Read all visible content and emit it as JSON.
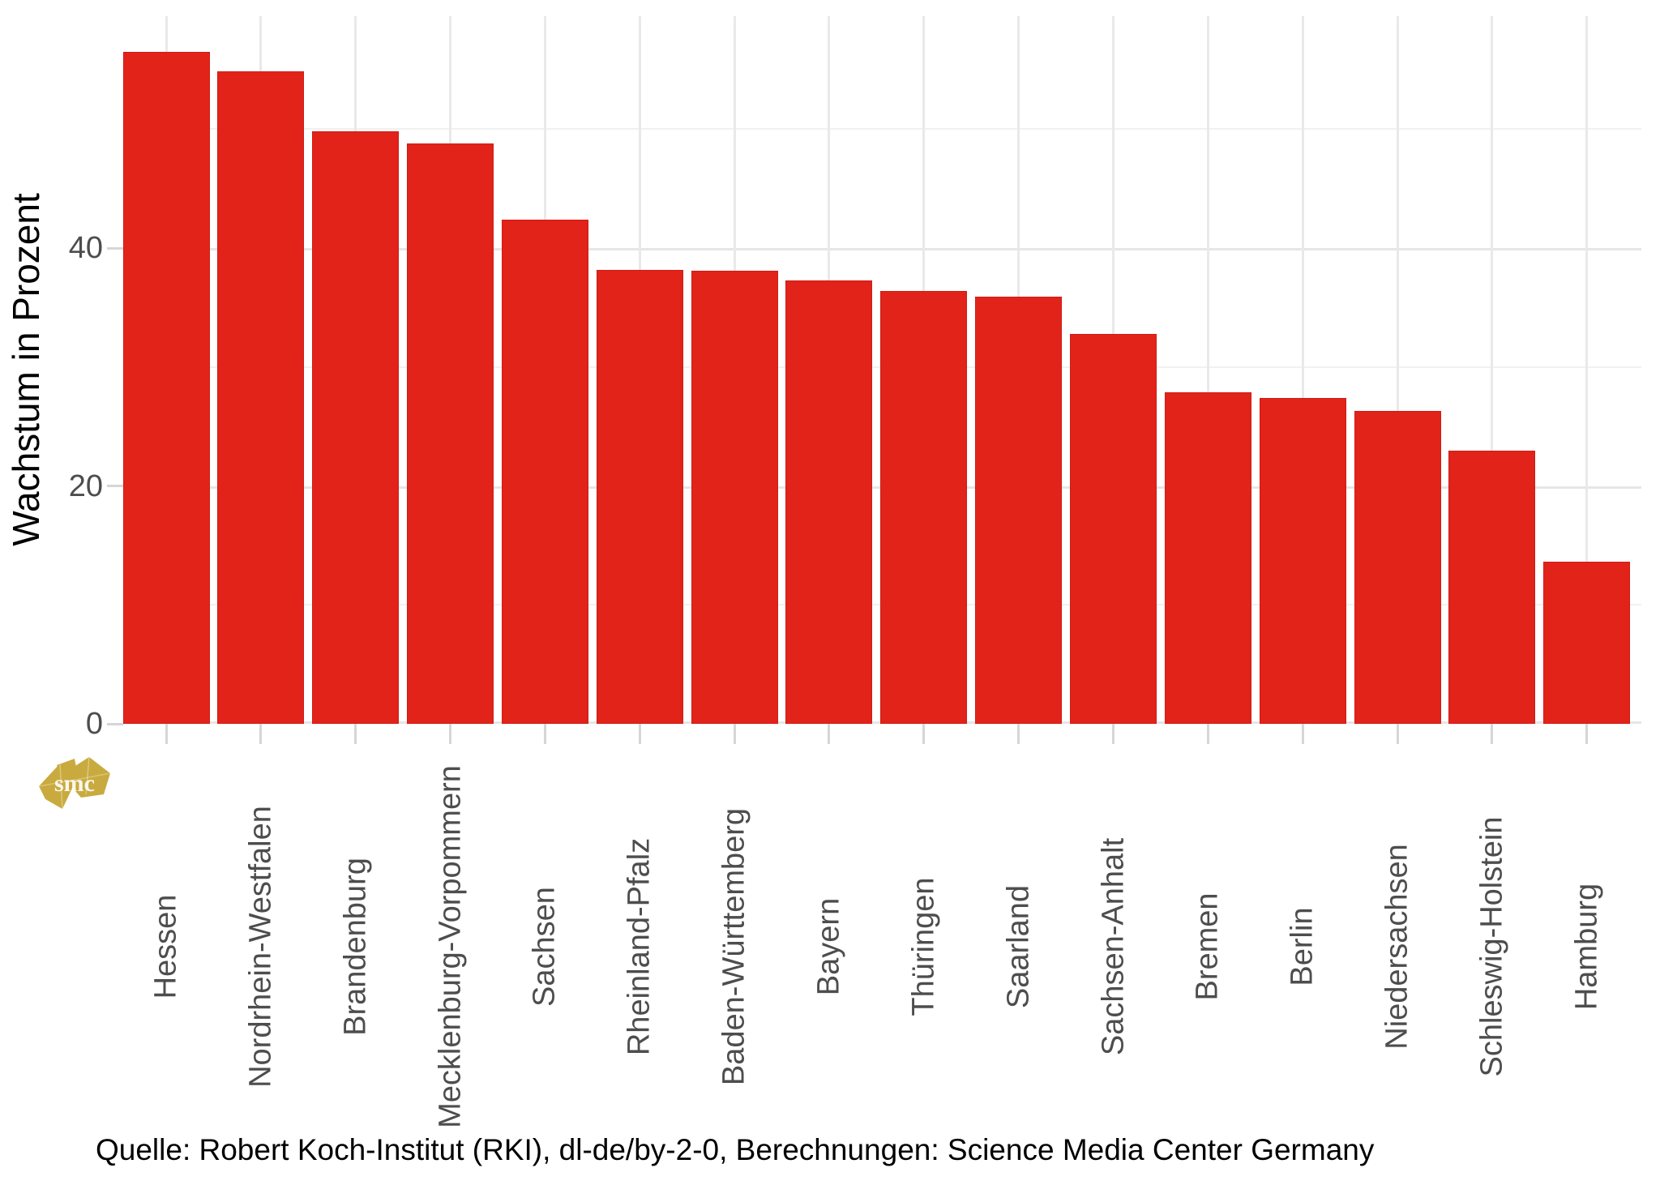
{
  "chart_data": {
    "type": "bar",
    "title": "",
    "xlabel": "",
    "ylabel": "Wachstum in Prozent",
    "categories": [
      "Hessen",
      "Nordrhein-Westfalen",
      "Brandenburg",
      "Mecklenburg-Vorpommern",
      "Sachsen",
      "Rheinland-Pfalz",
      "Baden-Württemberg",
      "Bayern",
      "Thüringen",
      "Saarland",
      "Sachsen-Anhalt",
      "Bremen",
      "Berlin",
      "Niedersachsen",
      "Schleswig-Holstein",
      "Hamburg"
    ],
    "values": [
      56.5,
      54.9,
      49.8,
      48.8,
      42.4,
      38.2,
      38.1,
      37.3,
      36.4,
      35.9,
      32.8,
      27.9,
      27.4,
      26.3,
      23.0,
      13.6
    ],
    "ylim": [
      0,
      59.5
    ],
    "y_major_ticks": [
      0,
      20,
      40
    ],
    "y_minor_gridlines": [
      10,
      30,
      50
    ],
    "grid": "horizontal major+minor gridlines, vertical gridline at each category center",
    "legend_position": "none",
    "bar_color": "#e2231a",
    "axis_text_color": "#4d4d4d"
  },
  "caption": "Quelle: Robert Koch-Institut (RKI), dl-de/by-2-0, Berechnungen: Science Media Center Germany",
  "logo": {
    "text": "smc",
    "color": "#c9aa3e"
  }
}
